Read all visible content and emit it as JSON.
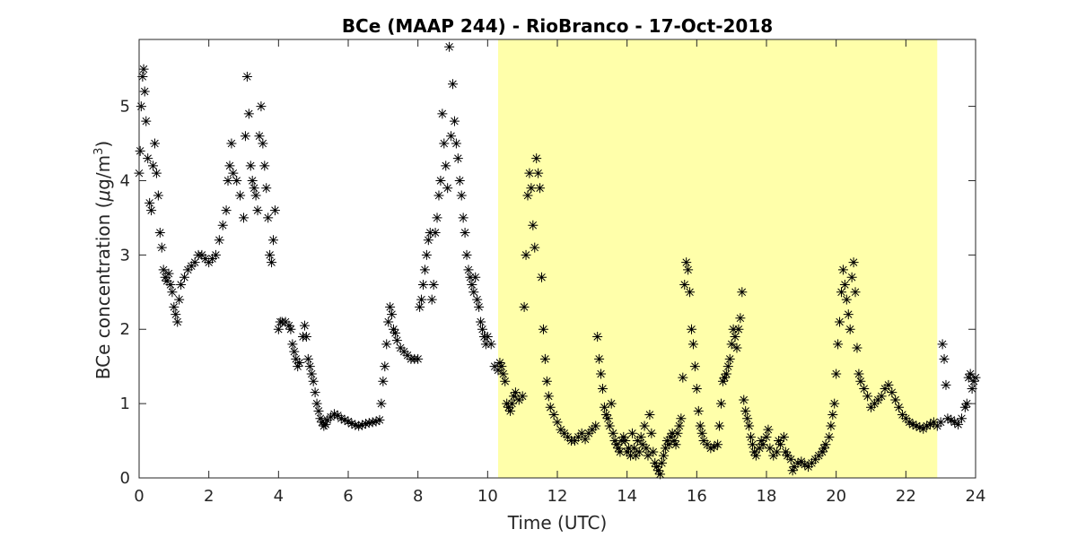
{
  "chart_data": {
    "type": "scatter",
    "title": "BCe (MAAP 244) - RioBranco - 17-Oct-2018",
    "xlabel": "Time (UTC)",
    "ylabel_prefix": "BCe concentration (",
    "ylabel_mu": "μ",
    "ylabel_units": "g/m",
    "ylabel_sup": "3",
    "ylabel_suffix": ")",
    "xlim": [
      0,
      24
    ],
    "ylim": [
      0,
      5.9
    ],
    "xticks": [
      0,
      2,
      4,
      6,
      8,
      10,
      12,
      14,
      16,
      18,
      20,
      22,
      24
    ],
    "yticks": [
      0,
      1,
      2,
      3,
      4,
      5
    ],
    "grid": false,
    "marker": "*",
    "marker_color": "#000000",
    "highlight": {
      "x_start": 10.3,
      "x_end": 22.9,
      "color": "#ffffaa"
    },
    "points": [
      [
        0.0,
        4.1
      ],
      [
        0.03,
        4.4
      ],
      [
        0.06,
        5.0
      ],
      [
        0.1,
        5.4
      ],
      [
        0.13,
        5.5
      ],
      [
        0.16,
        5.2
      ],
      [
        0.2,
        4.8
      ],
      [
        0.25,
        4.3
      ],
      [
        0.3,
        3.7
      ],
      [
        0.35,
        3.6
      ],
      [
        0.4,
        4.2
      ],
      [
        0.45,
        4.5
      ],
      [
        0.5,
        4.1
      ],
      [
        0.55,
        3.8
      ],
      [
        0.6,
        3.3
      ],
      [
        0.65,
        3.1
      ],
      [
        0.7,
        2.8
      ],
      [
        0.75,
        2.7
      ],
      [
        0.8,
        2.65
      ],
      [
        0.85,
        2.75
      ],
      [
        0.9,
        2.6
      ],
      [
        0.95,
        2.5
      ],
      [
        1.0,
        2.3
      ],
      [
        1.05,
        2.2
      ],
      [
        1.1,
        2.1
      ],
      [
        1.15,
        2.4
      ],
      [
        1.2,
        2.6
      ],
      [
        1.3,
        2.7
      ],
      [
        1.4,
        2.8
      ],
      [
        1.5,
        2.85
      ],
      [
        1.6,
        2.9
      ],
      [
        1.7,
        3.0
      ],
      [
        1.8,
        3.0
      ],
      [
        1.9,
        2.95
      ],
      [
        2.0,
        2.9
      ],
      [
        2.1,
        2.95
      ],
      [
        2.2,
        3.0
      ],
      [
        2.3,
        3.2
      ],
      [
        2.4,
        3.4
      ],
      [
        2.5,
        3.6
      ],
      [
        2.55,
        4.0
      ],
      [
        2.6,
        4.2
      ],
      [
        2.65,
        4.5
      ],
      [
        2.7,
        4.1
      ],
      [
        2.8,
        4.0
      ],
      [
        2.9,
        3.8
      ],
      [
        3.0,
        3.5
      ],
      [
        3.05,
        4.6
      ],
      [
        3.1,
        5.4
      ],
      [
        3.15,
        4.9
      ],
      [
        3.2,
        4.2
      ],
      [
        3.25,
        4.0
      ],
      [
        3.3,
        3.9
      ],
      [
        3.35,
        3.8
      ],
      [
        3.4,
        3.6
      ],
      [
        3.45,
        4.6
      ],
      [
        3.5,
        5.0
      ],
      [
        3.55,
        4.5
      ],
      [
        3.6,
        4.2
      ],
      [
        3.65,
        3.9
      ],
      [
        3.7,
        3.5
      ],
      [
        3.75,
        3.0
      ],
      [
        3.8,
        2.9
      ],
      [
        3.85,
        3.2
      ],
      [
        3.9,
        3.6
      ],
      [
        4.0,
        2.0
      ],
      [
        4.05,
        2.1
      ],
      [
        4.1,
        2.1
      ],
      [
        4.2,
        2.1
      ],
      [
        4.3,
        2.05
      ],
      [
        4.35,
        2.0
      ],
      [
        4.4,
        1.8
      ],
      [
        4.45,
        1.7
      ],
      [
        4.5,
        1.6
      ],
      [
        4.55,
        1.5
      ],
      [
        4.6,
        1.55
      ],
      [
        4.7,
        1.9
      ],
      [
        4.75,
        2.05
      ],
      [
        4.8,
        1.9
      ],
      [
        4.85,
        1.6
      ],
      [
        4.9,
        1.5
      ],
      [
        4.95,
        1.4
      ],
      [
        5.0,
        1.3
      ],
      [
        5.05,
        1.15
      ],
      [
        5.1,
        1.0
      ],
      [
        5.15,
        0.9
      ],
      [
        5.2,
        0.8
      ],
      [
        5.25,
        0.75
      ],
      [
        5.3,
        0.7
      ],
      [
        5.35,
        0.72
      ],
      [
        5.4,
        0.78
      ],
      [
        5.5,
        0.82
      ],
      [
        5.6,
        0.86
      ],
      [
        5.7,
        0.84
      ],
      [
        5.8,
        0.8
      ],
      [
        5.9,
        0.78
      ],
      [
        6.0,
        0.76
      ],
      [
        6.1,
        0.73
      ],
      [
        6.2,
        0.71
      ],
      [
        6.3,
        0.7
      ],
      [
        6.4,
        0.71
      ],
      [
        6.5,
        0.73
      ],
      [
        6.6,
        0.74
      ],
      [
        6.7,
        0.75
      ],
      [
        6.8,
        0.76
      ],
      [
        6.9,
        0.78
      ],
      [
        6.95,
        1.0
      ],
      [
        7.0,
        1.3
      ],
      [
        7.05,
        1.5
      ],
      [
        7.1,
        1.8
      ],
      [
        7.15,
        2.1
      ],
      [
        7.2,
        2.3
      ],
      [
        7.25,
        2.2
      ],
      [
        7.3,
        2.0
      ],
      [
        7.35,
        1.95
      ],
      [
        7.4,
        1.85
      ],
      [
        7.5,
        1.75
      ],
      [
        7.6,
        1.7
      ],
      [
        7.7,
        1.65
      ],
      [
        7.8,
        1.6
      ],
      [
        7.9,
        1.6
      ],
      [
        8.0,
        1.6
      ],
      [
        8.05,
        2.3
      ],
      [
        8.1,
        2.4
      ],
      [
        8.15,
        2.6
      ],
      [
        8.2,
        2.8
      ],
      [
        8.25,
        3.0
      ],
      [
        8.3,
        3.2
      ],
      [
        8.35,
        3.3
      ],
      [
        8.4,
        2.4
      ],
      [
        8.45,
        2.6
      ],
      [
        8.5,
        3.3
      ],
      [
        8.55,
        3.5
      ],
      [
        8.6,
        3.8
      ],
      [
        8.65,
        4.0
      ],
      [
        8.7,
        4.9
      ],
      [
        8.75,
        4.5
      ],
      [
        8.8,
        4.2
      ],
      [
        8.85,
        3.9
      ],
      [
        8.9,
        5.8
      ],
      [
        8.95,
        4.6
      ],
      [
        9.0,
        5.3
      ],
      [
        9.05,
        4.8
      ],
      [
        9.1,
        4.5
      ],
      [
        9.15,
        4.3
      ],
      [
        9.2,
        4.0
      ],
      [
        9.25,
        3.8
      ],
      [
        9.3,
        3.5
      ],
      [
        9.35,
        3.3
      ],
      [
        9.4,
        3.0
      ],
      [
        9.45,
        2.8
      ],
      [
        9.5,
        2.7
      ],
      [
        9.55,
        2.6
      ],
      [
        9.6,
        2.5
      ],
      [
        9.65,
        2.7
      ],
      [
        9.7,
        2.4
      ],
      [
        9.75,
        2.3
      ],
      [
        9.8,
        2.1
      ],
      [
        9.85,
        2.0
      ],
      [
        9.9,
        1.9
      ],
      [
        9.95,
        1.8
      ],
      [
        10.0,
        1.9
      ],
      [
        10.1,
        1.8
      ],
      [
        10.2,
        1.5
      ],
      [
        10.3,
        1.45
      ],
      [
        10.35,
        1.55
      ],
      [
        10.4,
        1.5
      ],
      [
        10.45,
        1.4
      ],
      [
        10.5,
        1.3
      ],
      [
        10.55,
        1.0
      ],
      [
        10.6,
        0.95
      ],
      [
        10.65,
        0.9
      ],
      [
        10.7,
        1.0
      ],
      [
        10.75,
        1.1
      ],
      [
        10.8,
        1.15
      ],
      [
        10.9,
        1.05
      ],
      [
        11.0,
        1.1
      ],
      [
        11.05,
        2.3
      ],
      [
        11.1,
        3.0
      ],
      [
        11.15,
        3.8
      ],
      [
        11.2,
        4.1
      ],
      [
        11.25,
        3.9
      ],
      [
        11.3,
        3.4
      ],
      [
        11.35,
        3.1
      ],
      [
        11.4,
        4.3
      ],
      [
        11.45,
        4.1
      ],
      [
        11.5,
        3.9
      ],
      [
        11.55,
        2.7
      ],
      [
        11.6,
        2.0
      ],
      [
        11.65,
        1.6
      ],
      [
        11.7,
        1.3
      ],
      [
        11.75,
        1.1
      ],
      [
        11.8,
        0.95
      ],
      [
        11.9,
        0.85
      ],
      [
        12.0,
        0.75
      ],
      [
        12.1,
        0.65
      ],
      [
        12.2,
        0.6
      ],
      [
        12.3,
        0.55
      ],
      [
        12.4,
        0.5
      ],
      [
        12.5,
        0.5
      ],
      [
        12.6,
        0.55
      ],
      [
        12.7,
        0.6
      ],
      [
        12.8,
        0.52
      ],
      [
        12.9,
        0.6
      ],
      [
        13.0,
        0.65
      ],
      [
        13.1,
        0.7
      ],
      [
        13.15,
        1.9
      ],
      [
        13.2,
        1.6
      ],
      [
        13.25,
        1.4
      ],
      [
        13.3,
        1.2
      ],
      [
        13.35,
        0.95
      ],
      [
        13.4,
        0.85
      ],
      [
        13.45,
        0.8
      ],
      [
        13.5,
        0.7
      ],
      [
        13.55,
        1.0
      ],
      [
        13.6,
        0.6
      ],
      [
        13.65,
        0.5
      ],
      [
        13.7,
        0.45
      ],
      [
        13.75,
        0.4
      ],
      [
        13.8,
        0.35
      ],
      [
        13.85,
        0.5
      ],
      [
        13.9,
        0.55
      ],
      [
        13.95,
        0.5
      ],
      [
        14.0,
        0.35
      ],
      [
        14.05,
        0.4
      ],
      [
        14.1,
        0.3
      ],
      [
        14.15,
        0.6
      ],
      [
        14.2,
        0.4
      ],
      [
        14.25,
        0.3
      ],
      [
        14.3,
        0.5
      ],
      [
        14.35,
        0.35
      ],
      [
        14.4,
        0.55
      ],
      [
        14.45,
        0.45
      ],
      [
        14.5,
        0.7
      ],
      [
        14.55,
        0.4
      ],
      [
        14.6,
        0.3
      ],
      [
        14.65,
        0.85
      ],
      [
        14.7,
        0.6
      ],
      [
        14.75,
        0.35
      ],
      [
        14.8,
        0.2
      ],
      [
        14.85,
        0.15
      ],
      [
        14.9,
        0.1
      ],
      [
        14.95,
        0.05
      ],
      [
        15.0,
        0.2
      ],
      [
        15.05,
        0.3
      ],
      [
        15.1,
        0.4
      ],
      [
        15.15,
        0.5
      ],
      [
        15.2,
        0.45
      ],
      [
        15.25,
        0.55
      ],
      [
        15.3,
        0.6
      ],
      [
        15.35,
        0.5
      ],
      [
        15.4,
        0.45
      ],
      [
        15.45,
        0.6
      ],
      [
        15.5,
        0.7
      ],
      [
        15.55,
        0.8
      ],
      [
        15.6,
        1.35
      ],
      [
        15.65,
        2.6
      ],
      [
        15.7,
        2.9
      ],
      [
        15.75,
        2.8
      ],
      [
        15.8,
        2.5
      ],
      [
        15.85,
        2.0
      ],
      [
        15.9,
        1.8
      ],
      [
        15.95,
        1.5
      ],
      [
        16.0,
        1.2
      ],
      [
        16.05,
        0.9
      ],
      [
        16.1,
        0.7
      ],
      [
        16.15,
        0.6
      ],
      [
        16.2,
        0.5
      ],
      [
        16.3,
        0.45
      ],
      [
        16.4,
        0.4
      ],
      [
        16.5,
        0.42
      ],
      [
        16.6,
        0.45
      ],
      [
        16.65,
        0.7
      ],
      [
        16.7,
        1.0
      ],
      [
        16.75,
        1.3
      ],
      [
        16.8,
        1.35
      ],
      [
        16.85,
        1.4
      ],
      [
        16.9,
        1.5
      ],
      [
        16.95,
        1.6
      ],
      [
        17.0,
        1.8
      ],
      [
        17.05,
        2.0
      ],
      [
        17.1,
        1.9
      ],
      [
        17.15,
        1.75
      ],
      [
        17.2,
        2.0
      ],
      [
        17.25,
        2.15
      ],
      [
        17.3,
        2.5
      ],
      [
        17.35,
        1.05
      ],
      [
        17.4,
        0.9
      ],
      [
        17.45,
        0.8
      ],
      [
        17.5,
        0.7
      ],
      [
        17.55,
        0.55
      ],
      [
        17.6,
        0.45
      ],
      [
        17.65,
        0.35
      ],
      [
        17.7,
        0.3
      ],
      [
        17.8,
        0.4
      ],
      [
        17.85,
        0.5
      ],
      [
        17.9,
        0.45
      ],
      [
        18.0,
        0.55
      ],
      [
        18.05,
        0.65
      ],
      [
        18.1,
        0.4
      ],
      [
        18.2,
        0.3
      ],
      [
        18.3,
        0.35
      ],
      [
        18.35,
        0.5
      ],
      [
        18.4,
        0.45
      ],
      [
        18.5,
        0.55
      ],
      [
        18.55,
        0.35
      ],
      [
        18.6,
        0.3
      ],
      [
        18.7,
        0.25
      ],
      [
        18.75,
        0.1
      ],
      [
        18.8,
        0.15
      ],
      [
        18.9,
        0.2
      ],
      [
        19.0,
        0.22
      ],
      [
        19.1,
        0.18
      ],
      [
        19.2,
        0.15
      ],
      [
        19.3,
        0.2
      ],
      [
        19.4,
        0.25
      ],
      [
        19.5,
        0.3
      ],
      [
        19.6,
        0.35
      ],
      [
        19.65,
        0.4
      ],
      [
        19.7,
        0.45
      ],
      [
        19.8,
        0.55
      ],
      [
        19.85,
        0.7
      ],
      [
        19.9,
        0.85
      ],
      [
        19.95,
        1.0
      ],
      [
        20.0,
        1.4
      ],
      [
        20.05,
        1.8
      ],
      [
        20.1,
        2.1
      ],
      [
        20.15,
        2.5
      ],
      [
        20.2,
        2.8
      ],
      [
        20.25,
        2.6
      ],
      [
        20.3,
        2.4
      ],
      [
        20.35,
        2.2
      ],
      [
        20.4,
        2.0
      ],
      [
        20.45,
        2.7
      ],
      [
        20.5,
        2.9
      ],
      [
        20.55,
        2.5
      ],
      [
        20.6,
        1.75
      ],
      [
        20.65,
        1.4
      ],
      [
        20.7,
        1.3
      ],
      [
        20.8,
        1.2
      ],
      [
        20.9,
        1.1
      ],
      [
        21.0,
        0.95
      ],
      [
        21.1,
        1.0
      ],
      [
        21.2,
        1.05
      ],
      [
        21.3,
        1.1
      ],
      [
        21.4,
        1.2
      ],
      [
        21.5,
        1.25
      ],
      [
        21.6,
        1.15
      ],
      [
        21.7,
        1.05
      ],
      [
        21.8,
        0.95
      ],
      [
        21.9,
        0.85
      ],
      [
        22.0,
        0.8
      ],
      [
        22.1,
        0.75
      ],
      [
        22.2,
        0.72
      ],
      [
        22.3,
        0.7
      ],
      [
        22.4,
        0.68
      ],
      [
        22.5,
        0.66
      ],
      [
        22.6,
        0.7
      ],
      [
        22.7,
        0.72
      ],
      [
        22.8,
        0.75
      ],
      [
        22.9,
        0.7
      ],
      [
        23.0,
        0.75
      ],
      [
        23.05,
        1.8
      ],
      [
        23.1,
        1.6
      ],
      [
        23.15,
        1.25
      ],
      [
        23.2,
        0.8
      ],
      [
        23.3,
        0.78
      ],
      [
        23.4,
        0.75
      ],
      [
        23.5,
        0.72
      ],
      [
        23.6,
        0.8
      ],
      [
        23.7,
        0.95
      ],
      [
        23.75,
        1.0
      ],
      [
        23.8,
        1.35
      ],
      [
        23.85,
        1.4
      ],
      [
        23.9,
        1.2
      ],
      [
        23.95,
        1.3
      ],
      [
        24.0,
        1.35
      ]
    ]
  }
}
